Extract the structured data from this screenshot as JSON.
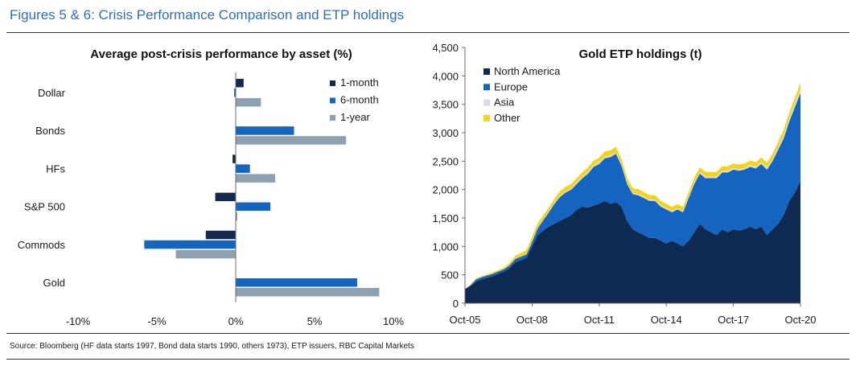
{
  "figure_title": "Figures 5 & 6: Crisis Performance Comparison and ETP holdings",
  "source": "Source: Bloomberg (HF data starts 1997, Bond data starts 1990, others 1973), ETP issuers, RBC Capital Markets",
  "chart_data": [
    {
      "type": "bar",
      "orientation": "horizontal",
      "title": "Average post-crisis performance by asset (%)",
      "categories": [
        "Dollar",
        "Bonds",
        "HFs",
        "S&P 500",
        "Commods",
        "Gold"
      ],
      "series": [
        {
          "name": "1-month",
          "color": "#14294d",
          "values": [
            0.5,
            0.0,
            -0.2,
            -1.3,
            -1.9,
            0.0
          ]
        },
        {
          "name": "6-month",
          "color": "#1565c0",
          "values": [
            -0.1,
            3.7,
            0.9,
            2.2,
            -5.8,
            7.7
          ]
        },
        {
          "name": "1-year",
          "color": "#8ea1b1",
          "values": [
            1.6,
            7.0,
            2.5,
            0.1,
            -3.8,
            9.1
          ]
        }
      ],
      "xlim": [
        -10,
        10
      ],
      "xticks": [
        "-10%",
        "-5%",
        "0%",
        "5%",
        "10%"
      ],
      "xtick_values": [
        -10,
        -5,
        0,
        5,
        10
      ],
      "legend": "top-right"
    },
    {
      "type": "area",
      "stacked": true,
      "title": "Gold ETP holdings (t)",
      "x_start": 2005.75,
      "x_end": 2020.75,
      "ylim": [
        0,
        4500
      ],
      "yticks": [
        "0",
        "500",
        "1,000",
        "1,500",
        "2,000",
        "2,500",
        "3,000",
        "3,500",
        "4,000",
        "4,500"
      ],
      "ytick_values": [
        0,
        500,
        1000,
        1500,
        2000,
        2500,
        3000,
        3500,
        4000,
        4500
      ],
      "xticks": [
        "Oct-05",
        "Oct-08",
        "Oct-11",
        "Oct-14",
        "Oct-17",
        "Oct-20"
      ],
      "xtick_values": [
        2005.75,
        2008.75,
        2011.75,
        2014.75,
        2017.75,
        2020.75
      ],
      "x": [
        2005.75,
        2006.0,
        2006.25,
        2006.5,
        2006.75,
        2007.0,
        2007.25,
        2007.5,
        2007.75,
        2008.0,
        2008.25,
        2008.5,
        2008.75,
        2009.0,
        2009.25,
        2009.5,
        2009.75,
        2010.0,
        2010.25,
        2010.5,
        2010.75,
        2011.0,
        2011.25,
        2011.5,
        2011.75,
        2012.0,
        2012.25,
        2012.5,
        2012.75,
        2013.0,
        2013.25,
        2013.5,
        2013.75,
        2014.0,
        2014.25,
        2014.5,
        2014.75,
        2015.0,
        2015.25,
        2015.5,
        2015.75,
        2016.0,
        2016.25,
        2016.5,
        2016.75,
        2017.0,
        2017.25,
        2017.5,
        2017.75,
        2018.0,
        2018.25,
        2018.5,
        2018.75,
        2019.0,
        2019.25,
        2019.5,
        2019.75,
        2020.0,
        2020.25,
        2020.5,
        2020.75
      ],
      "series": [
        {
          "name": "North America",
          "color": "#0e2a52",
          "values": [
            250,
            300,
            380,
            420,
            450,
            480,
            520,
            560,
            620,
            720,
            760,
            800,
            1000,
            1200,
            1280,
            1350,
            1400,
            1450,
            1500,
            1550,
            1650,
            1700,
            1680,
            1720,
            1750,
            1800,
            1750,
            1780,
            1700,
            1450,
            1300,
            1250,
            1200,
            1150,
            1150,
            1100,
            1050,
            1100,
            1050,
            1000,
            1100,
            1250,
            1400,
            1300,
            1250,
            1200,
            1300,
            1250,
            1300,
            1280,
            1300,
            1350,
            1300,
            1350,
            1200,
            1300,
            1400,
            1550,
            1800,
            1950,
            2150
          ]
        },
        {
          "name": "Europe",
          "color": "#1565c0",
          "values": [
            0,
            20,
            40,
            40,
            40,
            40,
            40,
            40,
            50,
            60,
            60,
            60,
            80,
            120,
            180,
            250,
            350,
            420,
            450,
            450,
            450,
            500,
            600,
            680,
            700,
            750,
            820,
            850,
            720,
            650,
            620,
            650,
            650,
            650,
            650,
            600,
            600,
            500,
            600,
            600,
            750,
            850,
            880,
            900,
            950,
            1000,
            1000,
            1050,
            1050,
            1050,
            1050,
            1050,
            1070,
            1100,
            1150,
            1200,
            1300,
            1350,
            1400,
            1500,
            1550
          ]
        },
        {
          "name": "Asia",
          "color": "#d8dde2",
          "values": [
            0,
            0,
            0,
            0,
            0,
            0,
            0,
            0,
            0,
            5,
            5,
            5,
            10,
            10,
            15,
            15,
            20,
            20,
            20,
            20,
            25,
            25,
            30,
            30,
            30,
            30,
            30,
            30,
            30,
            25,
            25,
            25,
            25,
            25,
            25,
            25,
            25,
            25,
            25,
            25,
            25,
            30,
            30,
            30,
            30,
            30,
            30,
            30,
            30,
            30,
            30,
            30,
            30,
            35,
            40,
            40,
            45,
            50,
            55,
            60,
            70
          ]
        },
        {
          "name": "Other",
          "color": "#f4d41a",
          "values": [
            0,
            10,
            20,
            20,
            20,
            20,
            25,
            30,
            40,
            50,
            60,
            70,
            80,
            80,
            70,
            70,
            70,
            80,
            80,
            80,
            80,
            80,
            80,
            80,
            80,
            90,
            90,
            90,
            90,
            80,
            80,
            80,
            80,
            80,
            75,
            75,
            75,
            70,
            70,
            70,
            75,
            80,
            80,
            80,
            80,
            80,
            80,
            80,
            80,
            80,
            80,
            80,
            80,
            80,
            85,
            90,
            90,
            100,
            100,
            100,
            110
          ]
        }
      ],
      "legend": "top-left"
    }
  ]
}
